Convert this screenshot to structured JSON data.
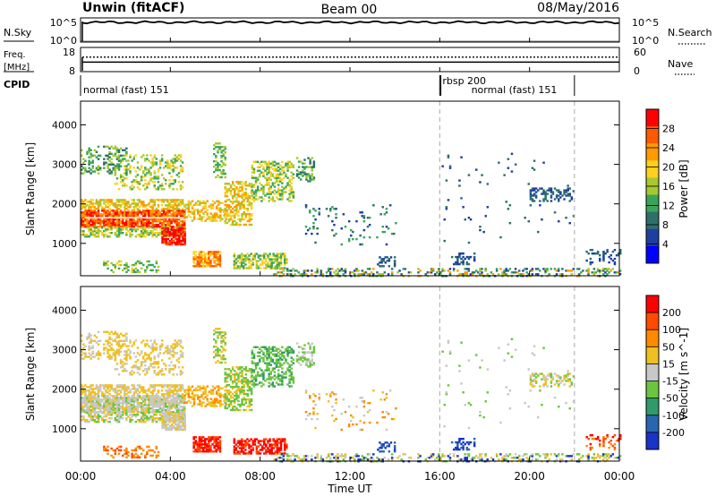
{
  "header": {
    "station": "Unwin (fitACF)",
    "beam": "Beam 00",
    "date": "08/May/2016"
  },
  "panel_labels": {
    "nsky": "N.Sky",
    "freq": "Freq.",
    "freq_unit": "[MHz]",
    "cpid": "CPID",
    "nsearch": "N.Search",
    "nave": "Nave"
  },
  "cpid_segments": [
    {
      "label": "normal (fast) 151",
      "start": 0,
      "end": 16
    },
    {
      "label": "rbsp 200",
      "start": 16,
      "end": 16.05
    },
    {
      "label": "normal (fast) 151",
      "start": 16.05,
      "end": 22
    }
  ],
  "time_axis": {
    "label": "Time UT",
    "ticks": [
      "00:00",
      "04:00",
      "08:00",
      "12:00",
      "16:00",
      "20:00",
      "00:00"
    ],
    "tick_hours": [
      0,
      4,
      8,
      12,
      16,
      20,
      24
    ]
  },
  "chart_data": [
    {
      "type": "line",
      "name": "noise",
      "left_ticks": [
        "10^5",
        "10^0"
      ],
      "right_ticks": [
        "10^5",
        "10^0"
      ],
      "nsky_level_frac": 0.88,
      "nsearch_style": "dotted"
    },
    {
      "type": "line",
      "name": "frequency",
      "left_ticks": [
        "18",
        "8"
      ],
      "right_ticks": [
        "60",
        "0"
      ],
      "freq_range_mhz": [
        8,
        18
      ],
      "freq_value_mhz": 12,
      "nave_range": [
        0,
        60
      ],
      "nave_value": 38
    },
    {
      "type": "heatmap",
      "quantity": "power",
      "xlabel": "Time UT",
      "ylabel": "Slant Range [km]",
      "xlim_hours": [
        0,
        24
      ],
      "ylim_km": [
        180,
        4600
      ],
      "yticks": [
        1000,
        2000,
        3000,
        4000
      ],
      "colorbar_label": "Power [dB]",
      "colorbar_ticks": [
        4,
        8,
        12,
        16,
        20,
        24,
        28
      ],
      "colorbar_range": [
        0,
        32
      ],
      "colorbar_colors": [
        "#0000ff",
        "#1f3fa0",
        "#2e6f6a",
        "#3aa55a",
        "#a6c830",
        "#ffd020",
        "#ff9a00",
        "#ff5a00",
        "#ff0000"
      ],
      "dashed_times_hours": [
        16,
        22
      ]
    },
    {
      "type": "heatmap",
      "quantity": "velocity",
      "xlabel": "Time UT",
      "ylabel": "Slant Range [km]",
      "xlim_hours": [
        0,
        24
      ],
      "ylim_km": [
        180,
        4600
      ],
      "yticks": [
        1000,
        2000,
        3000,
        4000
      ],
      "colorbar_label": "Velocity [m s^-1]",
      "colorbar_ticks": [
        200,
        100,
        50,
        15,
        -15,
        -50,
        -100,
        -200
      ],
      "colorbar_colors": [
        "#1a33c8",
        "#2a66b0",
        "#2f9a6a",
        "#6cc440",
        "#c8c8c8",
        "#f0c020",
        "#ff8a00",
        "#ff4a00",
        "#ff0000"
      ],
      "dashed_times_hours": [
        16,
        22
      ]
    }
  ]
}
